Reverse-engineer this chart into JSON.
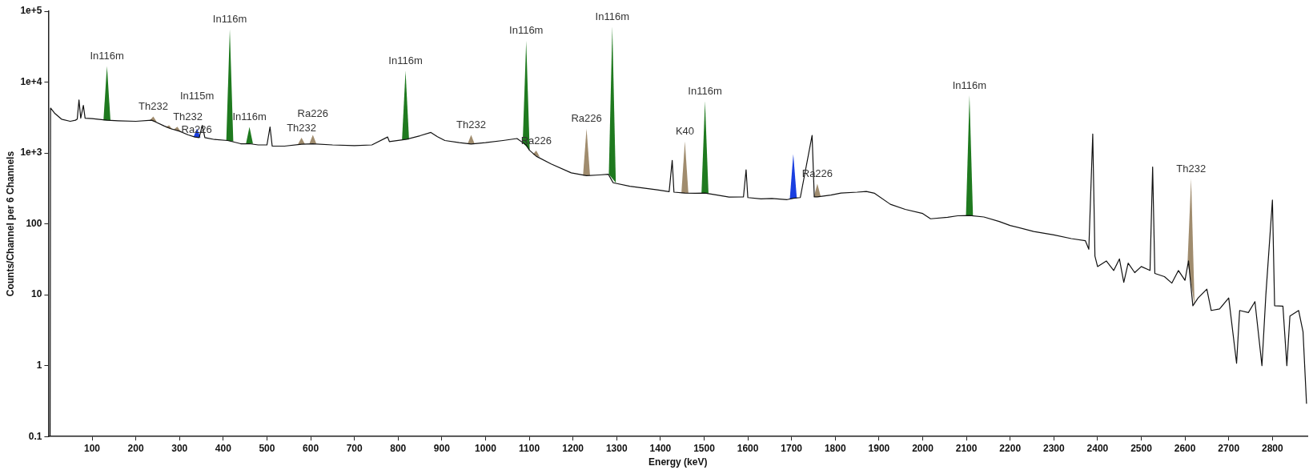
{
  "chart_data": {
    "type": "line",
    "xlabel": "Energy (keV)",
    "ylabel": "Counts/Channel per 6 Channels",
    "log": "y",
    "grid": false,
    "legend": false,
    "line_style": "solid",
    "marker": "none",
    "xlim": [
      0,
      2880
    ],
    "xticks": [
      100,
      200,
      300,
      400,
      500,
      600,
      700,
      800,
      900,
      1000,
      1100,
      1200,
      1300,
      1400,
      1500,
      1600,
      1700,
      1800,
      1900,
      2000,
      2100,
      2200,
      2300,
      2400,
      2500,
      2600,
      2700,
      2800
    ],
    "ylim": [
      0.1,
      100000
    ],
    "yticks": [
      0.1,
      1,
      10,
      100,
      {
        "value": 1000,
        "label": "1e+3"
      },
      {
        "value": 10000,
        "label": "1e+4"
      },
      {
        "value": 100000,
        "label": "1e+5"
      }
    ],
    "series": [
      {
        "color": "#111111",
        "x": [
          4,
          5,
          15,
          30,
          50,
          62,
          66,
          70,
          74,
          80,
          84,
          100,
          134,
          160,
          200,
          236,
          245,
          265,
          280,
          300,
          320,
          335,
          345,
          352,
          358,
          380,
          410,
          420,
          440,
          460,
          480,
          500,
          507,
          512,
          540,
          579,
          605,
          650,
          700,
          740,
          776,
          780,
          817,
          850,
          875,
          890,
          907,
          940,
          967,
          1000,
          1040,
          1072,
          1085,
          1093,
          1100,
          1116,
          1150,
          1196,
          1231,
          1260,
          1281,
          1292,
          1330,
          1393,
          1420,
          1427,
          1431,
          1456,
          1480,
          1502,
          1530,
          1557,
          1590,
          1596,
          1600,
          1630,
          1655,
          1690,
          1704,
          1720,
          1747,
          1752,
          1759,
          1790,
          1813,
          1850,
          1871,
          1890,
          1926,
          1960,
          2000,
          2018,
          2057,
          2080,
          2107,
          2140,
          2175,
          2200,
          2254,
          2300,
          2340,
          2372,
          2380,
          2389,
          2394,
          2400,
          2420,
          2437,
          2450,
          2460,
          2470,
          2485,
          2500,
          2520,
          2526,
          2531,
          2553,
          2570,
          2585,
          2600,
          2608,
          2618,
          2630,
          2650,
          2660,
          2679,
          2700,
          2718,
          2725,
          2745,
          2760,
          2776,
          2785,
          2800,
          2805,
          2824,
          2833,
          2840,
          2860,
          2870,
          2878
        ],
        "values": [
          0.1,
          4300,
          3600,
          3000,
          2800,
          2900,
          3000,
          5600,
          3100,
          4700,
          3100,
          3050,
          2900,
          2850,
          2800,
          2900,
          2750,
          2400,
          2200,
          2030,
          1800,
          1680,
          1650,
          2450,
          1650,
          1550,
          1500,
          1450,
          1350,
          1350,
          1300,
          1300,
          2330,
          1250,
          1250,
          1330,
          1350,
          1300,
          1270,
          1300,
          1680,
          1450,
          1550,
          1750,
          1950,
          1700,
          1500,
          1400,
          1340,
          1400,
          1500,
          1600,
          1400,
          1300,
          1100,
          900,
          700,
          525,
          480,
          490,
          500,
          380,
          340,
          302,
          285,
          785,
          280,
          272,
          270,
          272,
          255,
          239,
          240,
          580,
          235,
          225,
          228,
          220,
          230,
          235,
          1766,
          240,
          240,
          255,
          272,
          280,
          287,
          270,
          189,
          160,
          140,
          118,
          124,
          130,
          131,
          125,
          108,
          95,
          78,
          70,
          62,
          58,
          43.8,
          1850,
          35,
          25,
          30,
          22,
          32,
          15,
          28,
          20.5,
          25,
          22,
          634,
          20,
          18,
          14.6,
          22,
          16,
          30,
          7,
          9,
          12,
          6,
          6.3,
          9,
          1.08,
          6,
          5.6,
          8,
          1,
          10,
          217,
          7,
          6.9,
          1,
          5,
          6,
          3,
          0.29
        ]
      },
      {
        "type": "area",
        "color": "#1f7a1f",
        "x": [
          126,
          134,
          142,
          null,
          407,
          415,
          423,
          null,
          452,
          460,
          468,
          null,
          809,
          817,
          825,
          null,
          1085,
          1093,
          1101,
          null,
          1282,
          1290,
          1298,
          null,
          1494,
          1502,
          1510,
          null,
          2099,
          2107,
          2115
        ],
        "values": [
          2900,
          16900,
          2900,
          null,
          1500,
          55600,
          1450,
          null,
          1350,
          2330,
          1350,
          null,
          1550,
          14400,
          1550,
          null,
          1400,
          38300,
          1100,
          null,
          500,
          61000,
          380,
          null,
          272,
          5400,
          272,
          null,
          131,
          6520,
          131
        ]
      },
      {
        "type": "area",
        "color": "#a08c6e",
        "x": [
          232,
          240,
          248,
          null,
          268,
          276,
          284,
          null,
          287,
          295,
          303,
          null,
          571,
          579,
          587,
          null,
          597,
          605,
          613,
          null,
          959,
          967,
          975,
          null,
          1108,
          1116,
          1124,
          null,
          1223,
          1231,
          1239,
          null,
          1448,
          1456,
          1464,
          null,
          1751,
          1759,
          1767,
          null,
          2606,
          2614,
          2622
        ],
        "values": [
          2900,
          3270,
          2750,
          null,
          2300,
          2450,
          2150,
          null,
          2150,
          2350,
          2000,
          null,
          1330,
          1640,
          1330,
          null,
          1350,
          1800,
          1350,
          null,
          1340,
          1800,
          1340,
          null,
          950,
          1080,
          880,
          null,
          480,
          2220,
          480,
          null,
          272,
          1465,
          272,
          null,
          240,
          369,
          240,
          null,
          30,
          436,
          7
        ]
      },
      {
        "type": "area",
        "color": "#1a3fe0",
        "x": [
          332,
          340,
          348,
          null,
          1696,
          1704,
          1712
        ],
        "values": [
          1680,
          2210,
          1650,
          null,
          225,
          964,
          230
        ]
      }
    ],
    "annotations": [
      {
        "text": "In116m",
        "x": 134,
        "y": 16900
      },
      {
        "text": "Th232",
        "x": 240,
        "y": 3270
      },
      {
        "text": "Th232",
        "x": 276,
        "y": 2450
      },
      {
        "text": "Ra226",
        "x": 295,
        "y": 2350
      },
      {
        "text": "In115m",
        "x": 340,
        "y": 2210
      },
      {
        "text": "In116m",
        "x": 415,
        "y": 55600
      },
      {
        "text": "In116m",
        "x": 460,
        "y": 2330
      },
      {
        "text": "Th232",
        "x": 579,
        "y": 1640
      },
      {
        "text": "Ra226",
        "x": 605,
        "y": 1800
      },
      {
        "text": "In116m",
        "x": 817,
        "y": 14400
      },
      {
        "text": "Th232",
        "x": 967,
        "y": 1800
      },
      {
        "text": "In116m",
        "x": 1093,
        "y": 38300
      },
      {
        "text": "Ra226",
        "x": 1116,
        "y": 1080
      },
      {
        "text": "Ra226",
        "x": 1231,
        "y": 2220
      },
      {
        "text": "In116m",
        "x": 1290,
        "y": 61000
      },
      {
        "text": "K40",
        "x": 1456,
        "y": 1465
      },
      {
        "text": "In116m",
        "x": 1502,
        "y": 5400
      },
      {
        "text": "Ra226",
        "x": 1759,
        "y": 369
      },
      {
        "text": "In116m",
        "x": 2107,
        "y": 6520
      },
      {
        "text": "Th232",
        "x": 2614,
        "y": 436
      }
    ]
  }
}
